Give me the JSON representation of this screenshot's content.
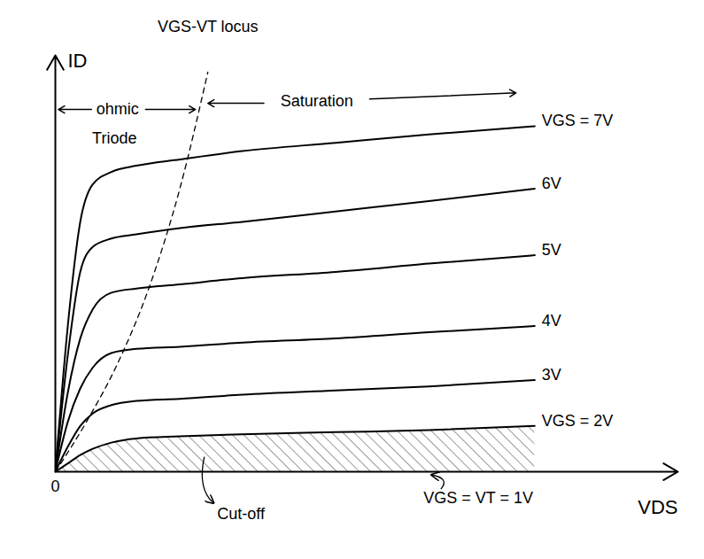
{
  "chart_data": {
    "type": "line",
    "x_label": "VDS",
    "y_label": "ID",
    "x": [
      0,
      0.2,
      0.4,
      0.6,
      0.9,
      1.3,
      2,
      3,
      4.5,
      6,
      7.7
    ],
    "series": [
      {
        "name": "VGS = 7V",
        "color": "#000000",
        "line_style": "solid",
        "values": [
          0,
          3.5,
          6.0,
          6.9,
          7.2,
          7.35,
          7.5,
          7.7,
          7.9,
          8.1,
          8.3
        ]
      },
      {
        "name": "6V",
        "color": "#000000",
        "line_style": "solid",
        "values": [
          0,
          2.8,
          4.8,
          5.4,
          5.6,
          5.7,
          5.85,
          6.0,
          6.25,
          6.5,
          6.8
        ]
      },
      {
        "name": "5V",
        "color": "#000000",
        "line_style": "solid",
        "values": [
          0,
          1.9,
          3.2,
          3.9,
          4.3,
          4.4,
          4.5,
          4.65,
          4.8,
          5.0,
          5.2
        ]
      },
      {
        "name": "4V",
        "color": "#000000",
        "line_style": "solid",
        "values": [
          0,
          1.2,
          2.0,
          2.5,
          2.85,
          2.95,
          3.0,
          3.1,
          3.2,
          3.35,
          3.5
        ]
      },
      {
        "name": "3V",
        "color": "#000000",
        "line_style": "solid",
        "values": [
          0,
          0.6,
          1.1,
          1.4,
          1.6,
          1.7,
          1.75,
          1.85,
          1.95,
          2.05,
          2.2
        ]
      },
      {
        "name": "VGS = 2V",
        "color": "#000000",
        "line_style": "solid",
        "values": [
          0,
          0.2,
          0.4,
          0.55,
          0.7,
          0.8,
          0.85,
          0.9,
          0.95,
          1.0,
          1.1
        ]
      }
    ],
    "locus": {
      "name": "VGS-VT locus",
      "color": "#000000",
      "line_style": "dashed",
      "x": [
        0,
        0.5,
        1.0,
        1.5,
        2.0,
        2.45
      ],
      "y": [
        0,
        1.2,
        2.6,
        4.4,
        6.8,
        9.6
      ]
    },
    "annotations": {
      "ohmic": "ohmic",
      "triode": "Triode",
      "saturation": "Saturation",
      "cutoff": "Cut-off",
      "threshold": "VGS = VT = 1V"
    },
    "xlim": [
      0,
      10
    ],
    "ylim": [
      0,
      10
    ],
    "xticks": [
      0
    ],
    "yticks": [],
    "tick_labels": "x",
    "grid": false
  }
}
